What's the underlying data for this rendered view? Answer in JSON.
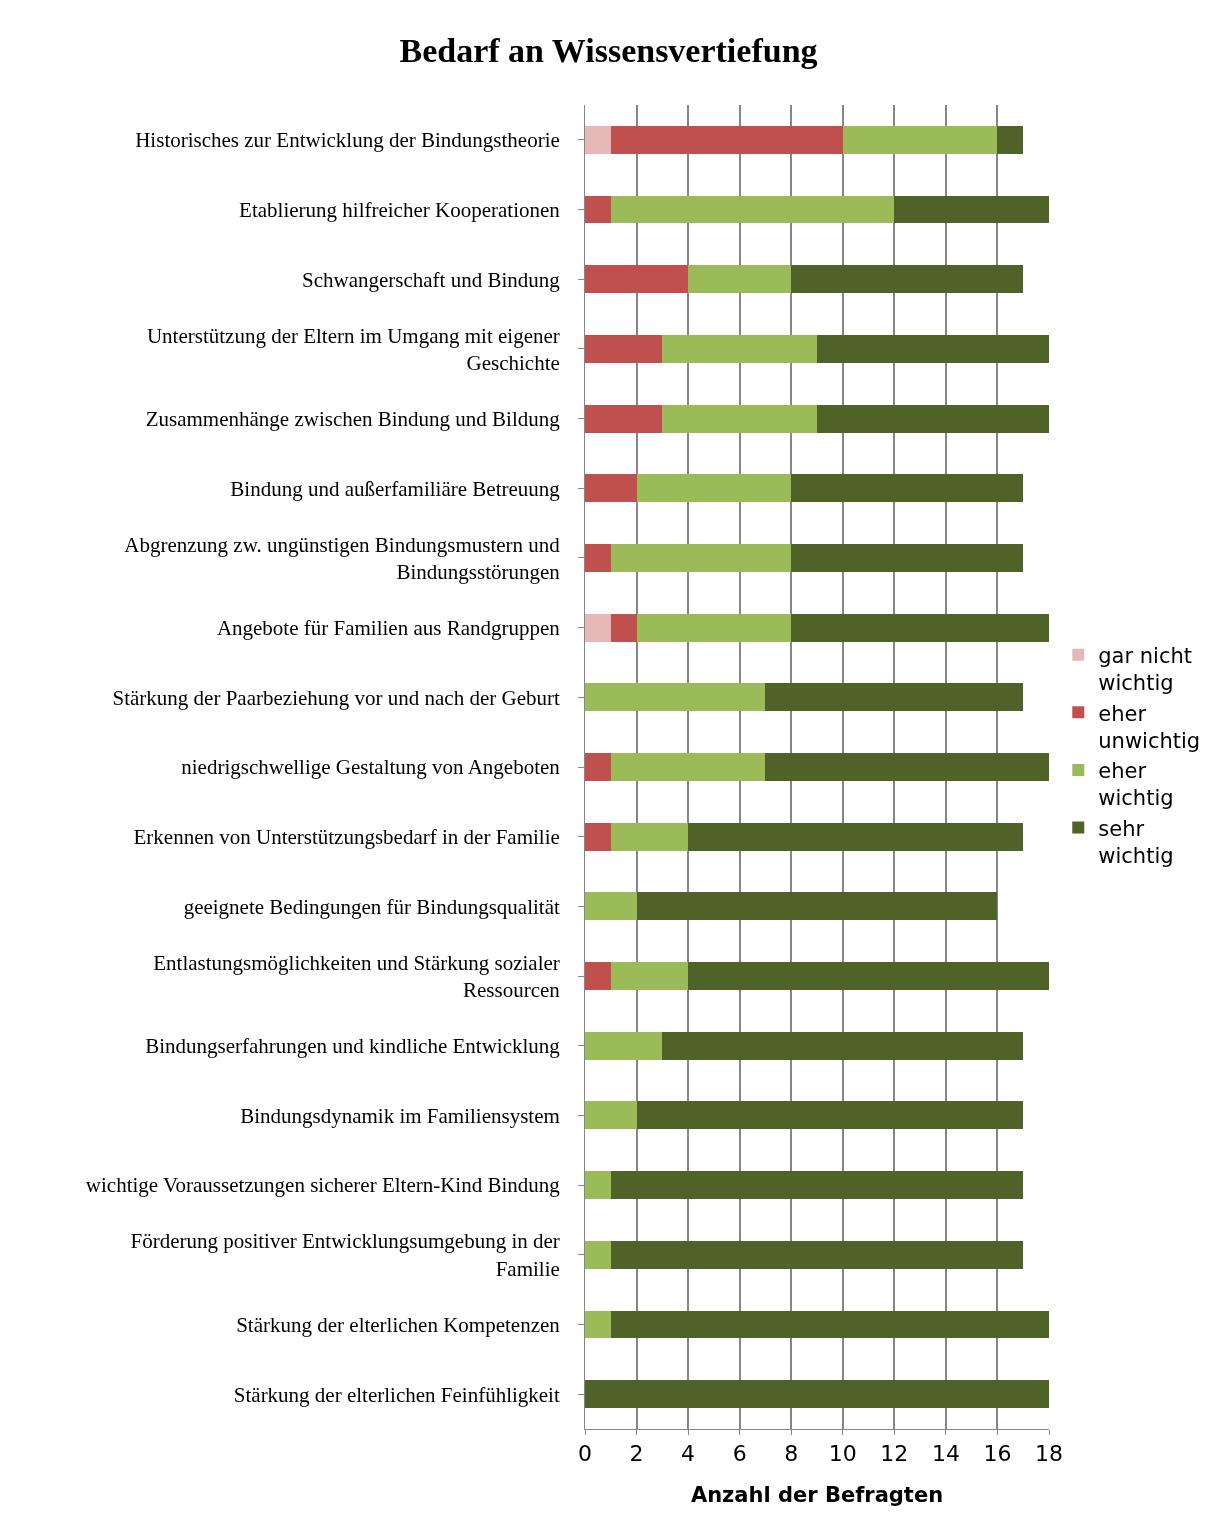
{
  "chart_data": {
    "type": "bar",
    "orientation": "horizontal",
    "stacked": true,
    "title": "Bedarf an Wissensvertiefung",
    "xlabel": "Anzahl der Befragten",
    "categories": [
      "Historisches zur Entwicklung der Bindungstheorie",
      "Etablierung hilfreicher Kooperationen",
      "Schwangerschaft und Bindung",
      "Unterstützung der Eltern im Umgang mit eigener Geschichte",
      "Zusammenhänge zwischen Bindung und Bildung",
      "Bindung und außerfamiliäre Betreuung",
      "Abgrenzung zw. ungünstigen Bindungsmustern und Bindungsstörungen",
      "Angebote für Familien aus Randgruppen",
      "Stärkung der Paarbeziehung vor und nach der Geburt",
      "niedrigschwellige Gestaltung von Angeboten",
      "Erkennen von Unterstützungsbedarf in der Familie",
      "geeignete Bedingungen für Bindungsqualität",
      "Entlastungsmöglichkeiten und Stärkung sozialer Ressourcen",
      "Bindungserfahrungen und kindliche Entwicklung",
      "Bindungsdynamik im Familiensystem",
      "wichtige Voraussetzungen sicherer Eltern-Kind Bindung",
      "Förderung positiver Entwicklungsumgebung in der Familie",
      "Stärkung der elterlichen Kompetenzen",
      "Stärkung der elterlichen Feinfühligkeit"
    ],
    "series": [
      {
        "name": "gar nicht wichtig",
        "color": "#e6b9b8",
        "values": [
          1,
          0,
          0,
          0,
          0,
          0,
          0,
          1,
          0,
          0,
          0,
          0,
          0,
          0,
          0,
          0,
          0,
          0,
          0
        ]
      },
      {
        "name": "eher unwichtig",
        "color": "#c0504d",
        "values": [
          9,
          1,
          4,
          3,
          3,
          2,
          1,
          1,
          0,
          1,
          1,
          0,
          1,
          0,
          0,
          0,
          0,
          0,
          0
        ]
      },
      {
        "name": "eher wichtig",
        "color": "#9bbb59",
        "values": [
          6,
          11,
          4,
          6,
          6,
          6,
          7,
          6,
          7,
          6,
          3,
          2,
          3,
          3,
          2,
          1,
          1,
          1,
          0
        ]
      },
      {
        "name": "sehr wichtig",
        "color": "#4f6228",
        "values": [
          1,
          6,
          9,
          9,
          9,
          9,
          9,
          10,
          10,
          11,
          13,
          14,
          14,
          14,
          15,
          16,
          16,
          17,
          18
        ]
      }
    ],
    "xlim": [
      0,
      18
    ],
    "xticks": [
      0,
      2,
      4,
      6,
      8,
      10,
      12,
      14,
      16,
      18
    ],
    "grid": "x",
    "legend": "right"
  }
}
